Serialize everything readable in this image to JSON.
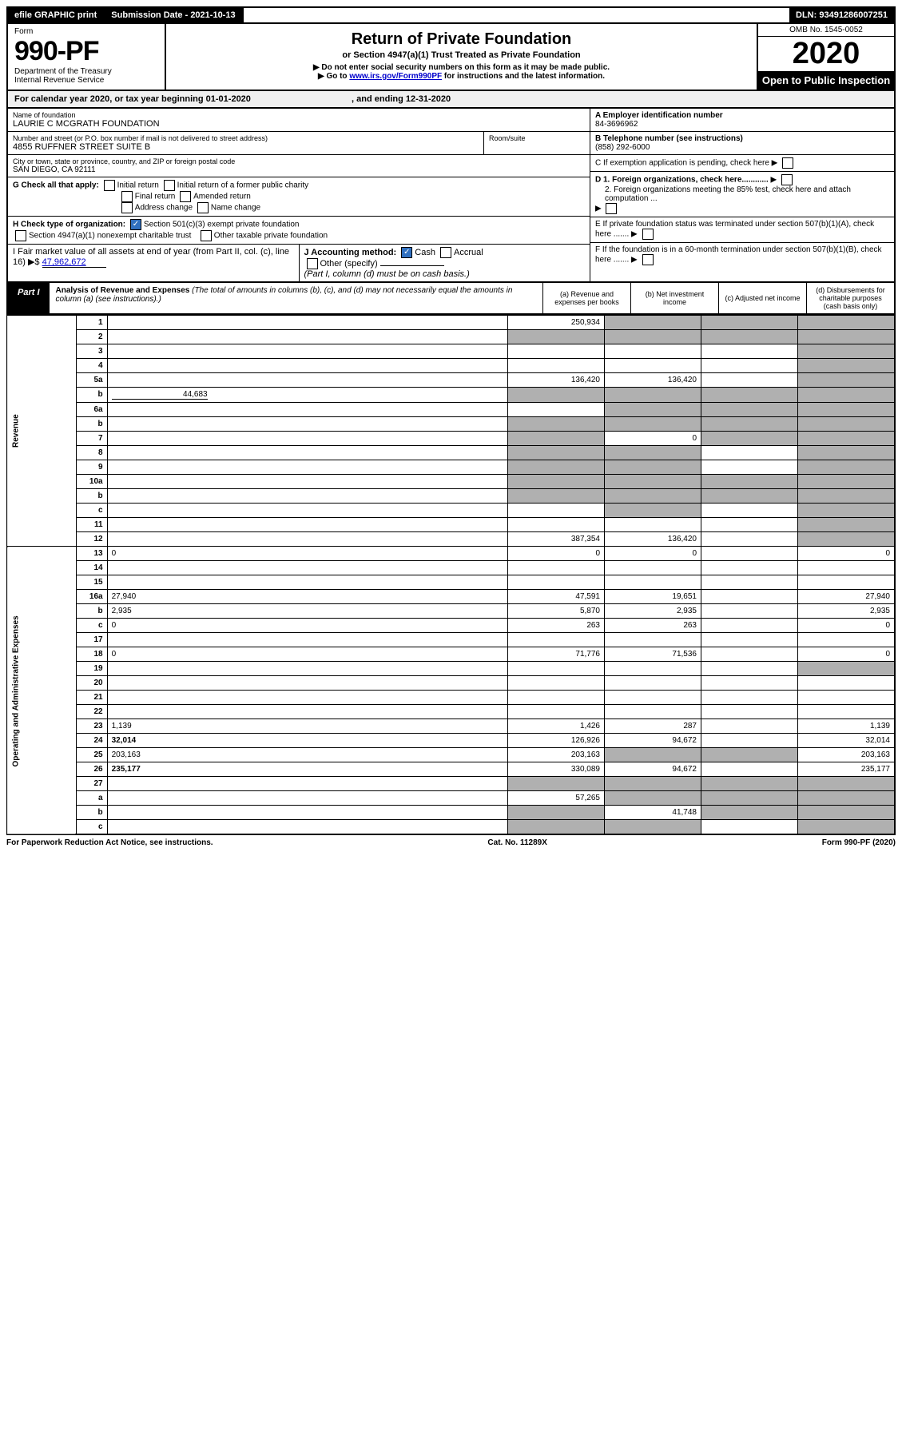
{
  "topbar": {
    "efile": "efile GRAPHIC print",
    "submission_label": "Submission Date - 2021-10-13",
    "dln": "DLN: 93491286007251"
  },
  "header": {
    "form_word": "Form",
    "form_number": "990-PF",
    "dept1": "Department of the Treasury",
    "dept2": "Internal Revenue Service",
    "title": "Return of Private Foundation",
    "subtitle": "or Section 4947(a)(1) Trust Treated as Private Foundation",
    "note1": "▶ Do not enter social security numbers on this form as it may be made public.",
    "note2_pre": "▶ Go to ",
    "note2_link": "www.irs.gov/Form990PF",
    "note2_post": " for instructions and the latest information.",
    "omb": "OMB No. 1545-0052",
    "year": "2020",
    "open": "Open to Public Inspection"
  },
  "cal_year": {
    "text": "For calendar year 2020, or tax year beginning 01-01-2020",
    "ending": ", and ending 12-31-2020"
  },
  "foundation": {
    "name_label": "Name of foundation",
    "name": "LAURIE C MCGRATH FOUNDATION",
    "addr_label": "Number and street (or P.O. box number if mail is not delivered to street address)",
    "addr": "4855 RUFFNER STREET SUITE B",
    "room_label": "Room/suite",
    "city_label": "City or town, state or province, country, and ZIP or foreign postal code",
    "city": "SAN DIEGO, CA  92111",
    "ein_label": "A Employer identification number",
    "ein": "84-3696962",
    "phone_label": "B Telephone number (see instructions)",
    "phone": "(858) 292-6000",
    "c_label": "C If exemption application is pending, check here",
    "d1": "D 1. Foreign organizations, check here............",
    "d2": "2. Foreign organizations meeting the 85% test, check here and attach computation ...",
    "e_label": "E  If private foundation status was terminated under section 507(b)(1)(A), check here .......",
    "f_label": "F  If the foundation is in a 60-month termination under section 507(b)(1)(B), check here .......",
    "g_label": "G Check all that apply:",
    "g_opts": [
      "Initial return",
      "Initial return of a former public charity",
      "Final return",
      "Amended return",
      "Address change",
      "Name change"
    ],
    "h_label": "H Check type of organization:",
    "h_opt1": "Section 501(c)(3) exempt private foundation",
    "h_opt2": "Section 4947(a)(1) nonexempt charitable trust",
    "h_opt3": "Other taxable private foundation",
    "i_label": "I Fair market value of all assets at end of year (from Part II, col. (c), line 16)",
    "i_value": "47,962,672",
    "j_label": "J Accounting method:",
    "j_cash": "Cash",
    "j_accrual": "Accrual",
    "j_other": "Other (specify)",
    "j_note": "(Part I, column (d) must be on cash basis.)"
  },
  "part1": {
    "label": "Part I",
    "title": "Analysis of Revenue and Expenses",
    "title_note": "(The total of amounts in columns (b), (c), and (d) may not necessarily equal the amounts in column (a) (see instructions).)",
    "col_a": "(a) Revenue and expenses per books",
    "col_b": "(b) Net investment income",
    "col_c": "(c) Adjusted net income",
    "col_d": "(d) Disbursements for charitable purposes (cash basis only)"
  },
  "side_labels": {
    "revenue": "Revenue",
    "expenses": "Operating and Administrative Expenses"
  },
  "rows": [
    {
      "n": "1",
      "d": "",
      "a": "250,934",
      "b": "",
      "c": "",
      "shade_b": true,
      "shade_c": true,
      "shade_d": true
    },
    {
      "n": "2",
      "d": "",
      "a": "",
      "b": "",
      "c": "",
      "shade_a": true,
      "shade_b": true,
      "shade_c": true,
      "shade_d": true
    },
    {
      "n": "3",
      "d": "",
      "a": "",
      "b": "",
      "c": "",
      "shade_d": true
    },
    {
      "n": "4",
      "d": "",
      "a": "",
      "b": "",
      "c": "",
      "shade_d": true
    },
    {
      "n": "5a",
      "d": "",
      "a": "136,420",
      "b": "136,420",
      "c": "",
      "shade_d": true
    },
    {
      "n": "b",
      "d": "",
      "inline": "44,683",
      "a": "",
      "b": "",
      "c": "",
      "shade_a": true,
      "shade_b": true,
      "shade_c": true,
      "shade_d": true
    },
    {
      "n": "6a",
      "d": "",
      "a": "",
      "b": "",
      "c": "",
      "shade_b": true,
      "shade_c": true,
      "shade_d": true
    },
    {
      "n": "b",
      "d": "",
      "a": "",
      "b": "",
      "c": "",
      "shade_a": true,
      "shade_b": true,
      "shade_c": true,
      "shade_d": true
    },
    {
      "n": "7",
      "d": "",
      "a": "",
      "b": "0",
      "c": "",
      "shade_a": true,
      "shade_c": true,
      "shade_d": true
    },
    {
      "n": "8",
      "d": "",
      "a": "",
      "b": "",
      "c": "",
      "shade_a": true,
      "shade_b": true,
      "shade_d": true
    },
    {
      "n": "9",
      "d": "",
      "a": "",
      "b": "",
      "c": "",
      "shade_a": true,
      "shade_b": true,
      "shade_d": true
    },
    {
      "n": "10a",
      "d": "",
      "a": "",
      "b": "",
      "c": "",
      "shade_a": true,
      "shade_b": true,
      "shade_c": true,
      "shade_d": true
    },
    {
      "n": "b",
      "d": "",
      "a": "",
      "b": "",
      "c": "",
      "shade_a": true,
      "shade_b": true,
      "shade_c": true,
      "shade_d": true
    },
    {
      "n": "c",
      "d": "",
      "a": "",
      "b": "",
      "c": "",
      "shade_b": true,
      "shade_d": true
    },
    {
      "n": "11",
      "d": "",
      "a": "",
      "b": "",
      "c": "",
      "shade_d": true
    },
    {
      "n": "12",
      "d": "",
      "bold": true,
      "a": "387,354",
      "b": "136,420",
      "c": "",
      "shade_d": true
    },
    {
      "n": "13",
      "d": "0",
      "a": "0",
      "b": "0",
      "c": ""
    },
    {
      "n": "14",
      "d": "",
      "a": "",
      "b": "",
      "c": ""
    },
    {
      "n": "15",
      "d": "",
      "a": "",
      "b": "",
      "c": ""
    },
    {
      "n": "16a",
      "d": "27,940",
      "a": "47,591",
      "b": "19,651",
      "c": ""
    },
    {
      "n": "b",
      "d": "2,935",
      "a": "5,870",
      "b": "2,935",
      "c": ""
    },
    {
      "n": "c",
      "d": "0",
      "a": "263",
      "b": "263",
      "c": ""
    },
    {
      "n": "17",
      "d": "",
      "a": "",
      "b": "",
      "c": ""
    },
    {
      "n": "18",
      "d": "0",
      "a": "71,776",
      "b": "71,536",
      "c": ""
    },
    {
      "n": "19",
      "d": "",
      "a": "",
      "b": "",
      "c": "",
      "shade_d": true
    },
    {
      "n": "20",
      "d": "",
      "a": "",
      "b": "",
      "c": ""
    },
    {
      "n": "21",
      "d": "",
      "a": "",
      "b": "",
      "c": ""
    },
    {
      "n": "22",
      "d": "",
      "a": "",
      "b": "",
      "c": ""
    },
    {
      "n": "23",
      "d": "1,139",
      "a": "1,426",
      "b": "287",
      "c": ""
    },
    {
      "n": "24",
      "d": "32,014",
      "bold": true,
      "a": "126,926",
      "b": "94,672",
      "c": ""
    },
    {
      "n": "25",
      "d": "203,163",
      "a": "203,163",
      "b": "",
      "c": "",
      "shade_b": true,
      "shade_c": true
    },
    {
      "n": "26",
      "d": "235,177",
      "bold": true,
      "a": "330,089",
      "b": "94,672",
      "c": ""
    },
    {
      "n": "27",
      "d": "",
      "a": "",
      "b": "",
      "c": "",
      "shade_a": true,
      "shade_b": true,
      "shade_c": true,
      "shade_d": true
    },
    {
      "n": "a",
      "d": "",
      "bold": true,
      "a": "57,265",
      "b": "",
      "c": "",
      "shade_b": true,
      "shade_c": true,
      "shade_d": true
    },
    {
      "n": "b",
      "d": "",
      "bold": true,
      "a": "",
      "b": "41,748",
      "c": "",
      "shade_a": true,
      "shade_c": true,
      "shade_d": true
    },
    {
      "n": "c",
      "d": "",
      "bold": true,
      "a": "",
      "b": "",
      "c": "",
      "shade_a": true,
      "shade_b": true,
      "shade_d": true
    }
  ],
  "footer": {
    "left": "For Paperwork Reduction Act Notice, see instructions.",
    "mid": "Cat. No. 11289X",
    "right": "Form 990-PF (2020)"
  }
}
